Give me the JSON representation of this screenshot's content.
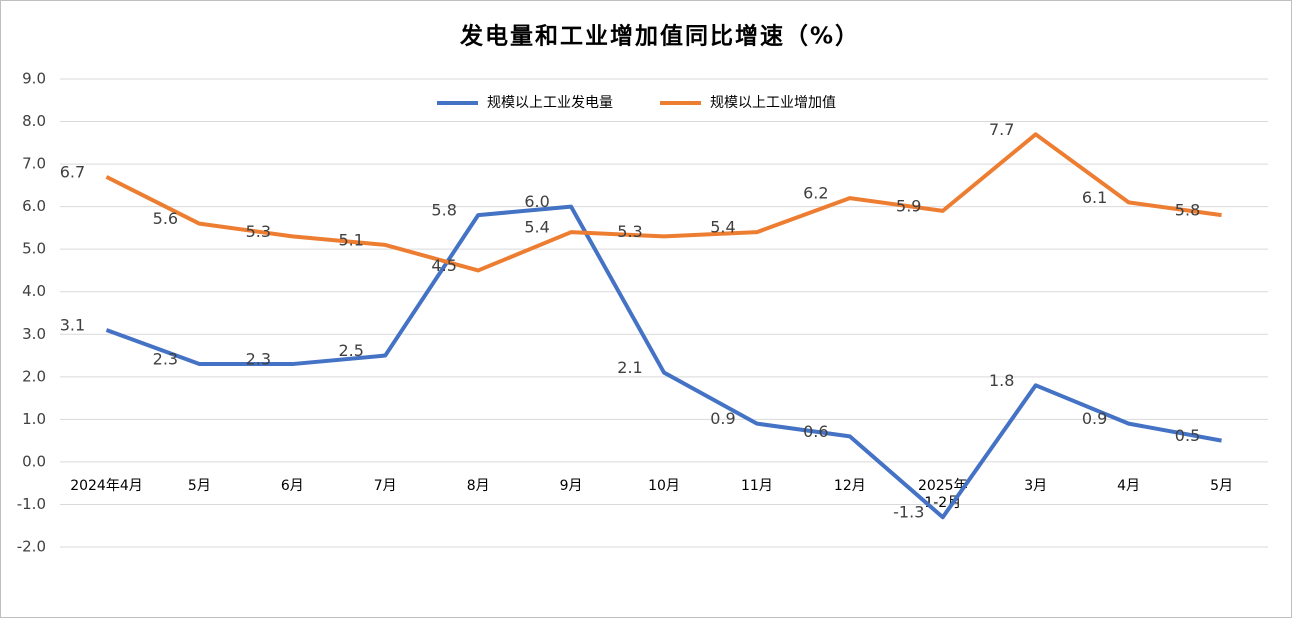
{
  "chart_data": {
    "type": "line",
    "title": "发电量和工业增加值同比增速（%）",
    "categories": [
      "2024年4月",
      "5月",
      "6月",
      "7月",
      "8月",
      "9月",
      "10月",
      "11月",
      "12月",
      "2025年\n1-2月",
      "3月",
      "4月",
      "5月"
    ],
    "series": [
      {
        "name": "规模以上工业发电量",
        "color": "#4472c4",
        "values": [
          3.1,
          2.3,
          2.3,
          2.5,
          5.8,
          6.0,
          2.1,
          0.9,
          0.6,
          -1.3,
          1.8,
          0.9,
          0.5
        ],
        "value_labels": [
          "3.1",
          "2.3",
          "2.3",
          "2.5",
          "5.8",
          "6.0",
          "2.1",
          "0.9",
          "0.6",
          "-1.3",
          "1.8",
          "0.9",
          "0.5"
        ]
      },
      {
        "name": "规模以上工业增加值",
        "color": "#ed7d31",
        "values": [
          6.7,
          5.6,
          5.3,
          5.1,
          4.5,
          5.4,
          5.3,
          5.4,
          6.2,
          5.9,
          7.7,
          6.1,
          5.8
        ],
        "value_labels": [
          "6.7",
          "5.6",
          "5.3",
          "5.1",
          "4.5",
          "5.4",
          "5.3",
          "5.4",
          "6.2",
          "5.9",
          "7.7",
          "6.1",
          "5.8"
        ]
      }
    ],
    "ylim": [
      -2,
      9
    ],
    "yticks": [
      {
        "value": -2,
        "label": "-2.0"
      },
      {
        "value": -1,
        "label": "-1.0"
      },
      {
        "value": 0,
        "label": "0.0"
      },
      {
        "value": 1,
        "label": "1.0"
      },
      {
        "value": 2,
        "label": "2.0"
      },
      {
        "value": 3,
        "label": "3.0"
      },
      {
        "value": 4,
        "label": "4.0"
      },
      {
        "value": 5,
        "label": "5.0"
      },
      {
        "value": 6,
        "label": "6.0"
      },
      {
        "value": 7,
        "label": "7.0"
      },
      {
        "value": 8,
        "label": "8.0"
      },
      {
        "value": 9,
        "label": "9.0"
      }
    ],
    "grid": true,
    "legend": "top"
  }
}
